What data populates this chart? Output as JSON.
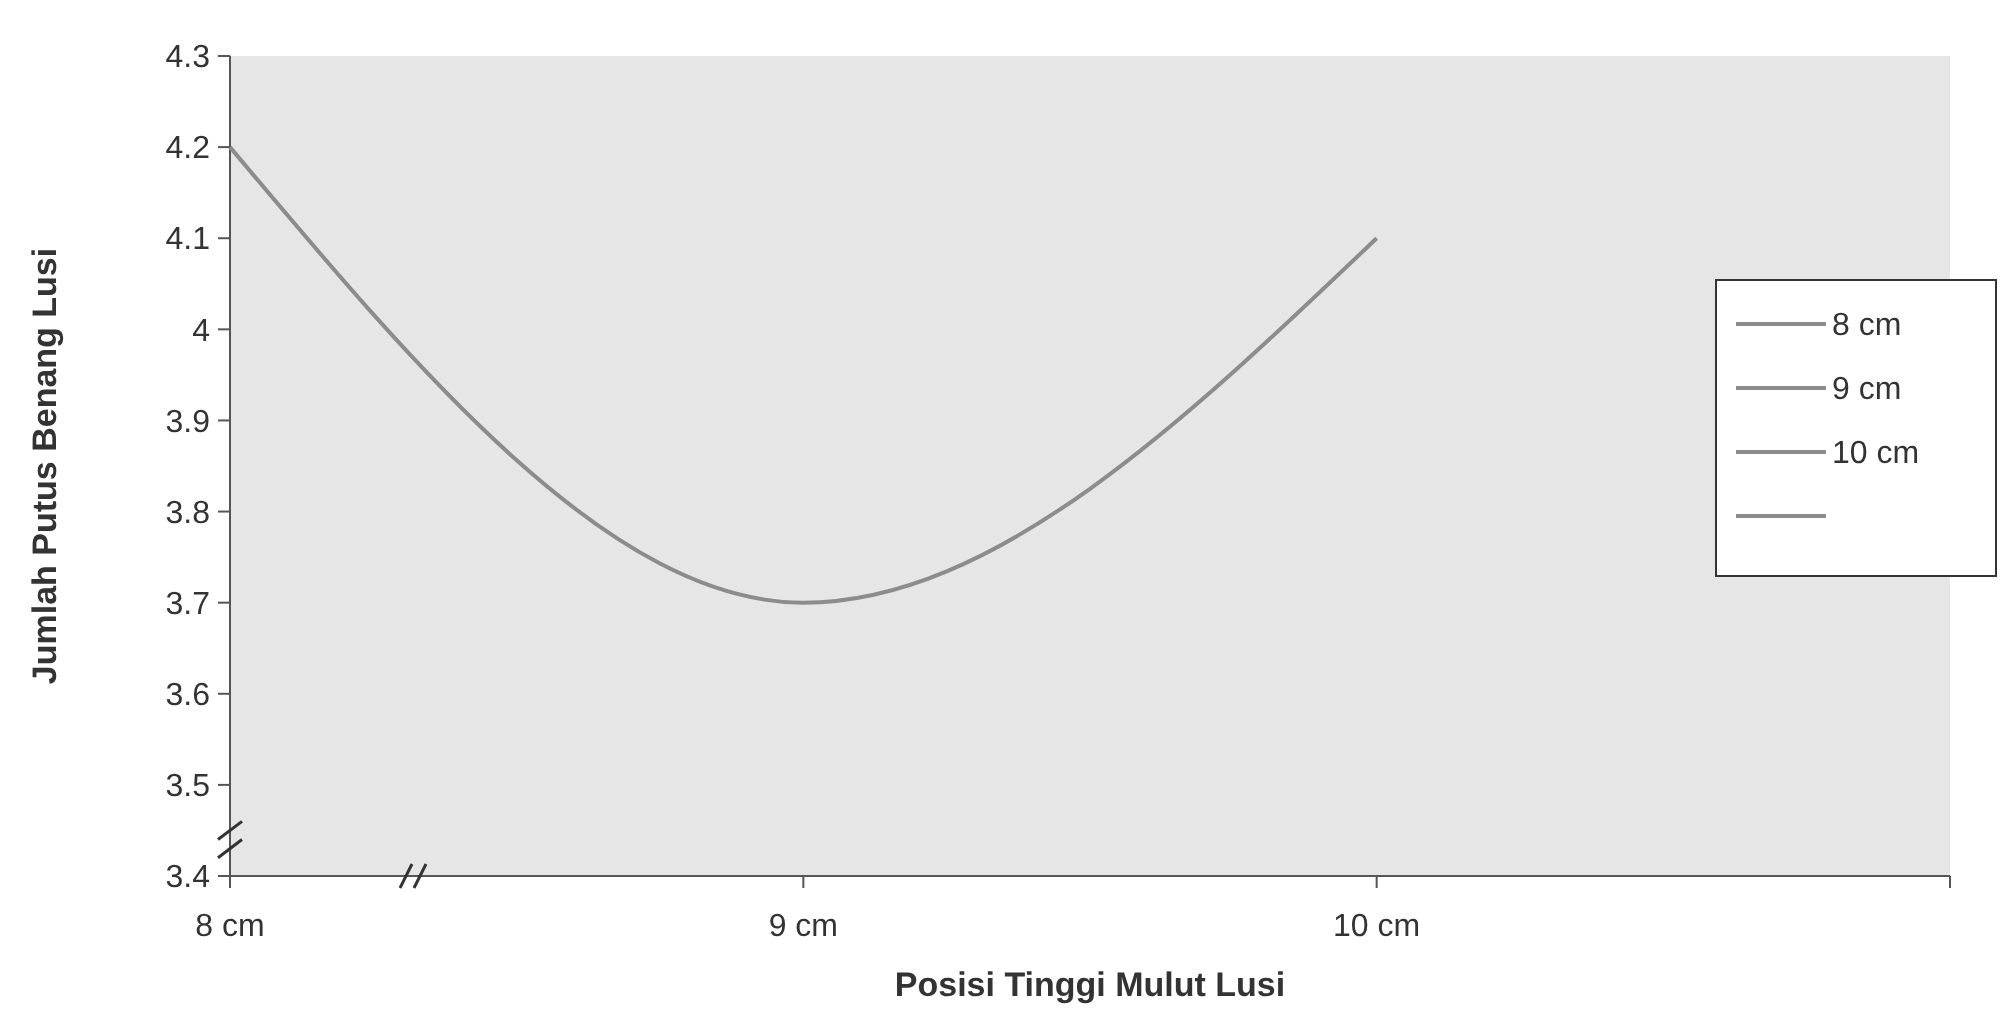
{
  "chart_data": {
    "type": "line",
    "xlabel": "Posisi Tinggi Mulut Lusi",
    "ylabel": "Jumlah Putus Benang Lusi",
    "categories": [
      "8 cm",
      "9 cm",
      "10 cm",
      null
    ],
    "series": [
      {
        "color": "#8c8c8c",
        "values": [
          4.2,
          3.7,
          4.1,
          null
        ]
      }
    ],
    "ylim": [
      3.4,
      4.3
    ],
    "yticks": [
      3.4,
      3.5,
      3.6,
      3.7,
      3.8,
      3.9,
      4,
      4.1,
      4.2,
      4.3
    ],
    "annotations": [
      "8 cm",
      "9 cm",
      "10 cm"
    ],
    "grid": false,
    "marker": "none",
    "line_style": "solid"
  }
}
